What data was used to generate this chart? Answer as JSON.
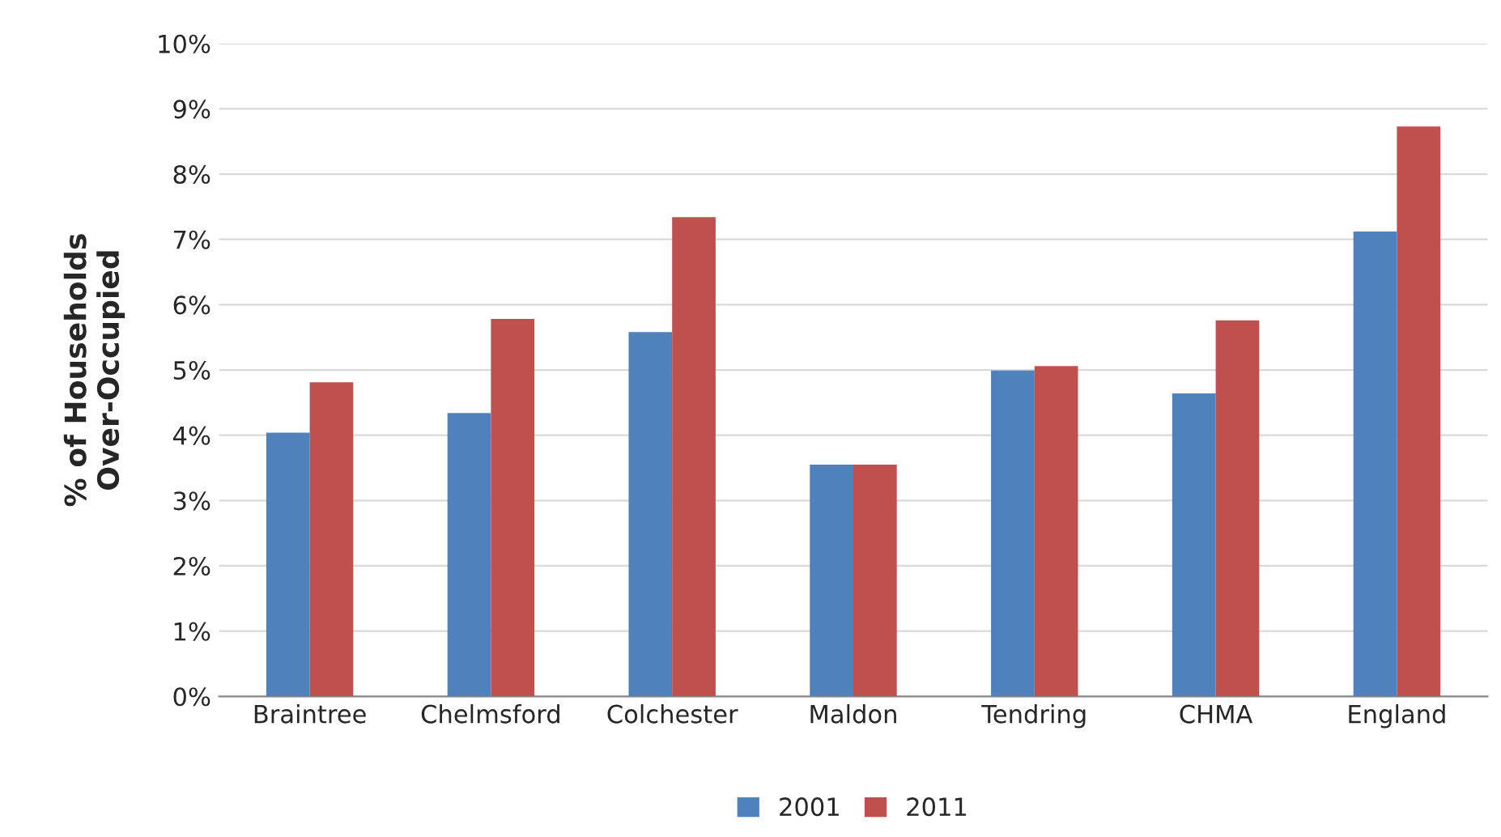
{
  "chart_data": {
    "type": "bar",
    "ylabel": "% of Households\nOver-Occupied",
    "categories": [
      "Braintree",
      "Chelmsford",
      "Colchester",
      "Maldon",
      "Tendring",
      "CHMA",
      "England"
    ],
    "series": [
      {
        "name": "2001",
        "color": "#4f81bd",
        "values": [
          4.04,
          4.34,
          5.58,
          3.55,
          4.99,
          4.64,
          7.12
        ]
      },
      {
        "name": "2011",
        "color": "#c0504d",
        "values": [
          4.81,
          5.78,
          7.34,
          3.55,
          5.06,
          5.76,
          8.73
        ]
      }
    ],
    "ylim": [
      0,
      10
    ],
    "yticks": [
      {
        "value": 0,
        "label": "0%"
      },
      {
        "value": 1,
        "label": "1%"
      },
      {
        "value": 2,
        "label": "2%"
      },
      {
        "value": 3,
        "label": "3%"
      },
      {
        "value": 4,
        "label": "4%"
      },
      {
        "value": 5,
        "label": "5%"
      },
      {
        "value": 6,
        "label": "6%"
      },
      {
        "value": 7,
        "label": "7%"
      },
      {
        "value": 8,
        "label": "8%"
      },
      {
        "value": 9,
        "label": "9%"
      },
      {
        "value": 10,
        "label": "10%"
      }
    ],
    "grid": "y",
    "legend": "bottom"
  }
}
